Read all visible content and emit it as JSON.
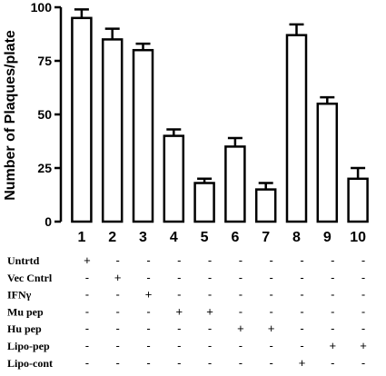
{
  "chart_data": {
    "type": "bar",
    "categories": [
      "1",
      "2",
      "3",
      "4",
      "5",
      "6",
      "7",
      "8",
      "9",
      "10"
    ],
    "values": [
      95,
      85,
      80,
      40,
      18,
      35,
      15,
      87,
      55,
      20
    ],
    "errors": [
      4,
      5,
      3,
      3,
      2,
      4,
      3,
      5,
      3,
      5
    ],
    "ylabel": "Number of Plaques/plate",
    "ylim": [
      0,
      100
    ],
    "yticks": [
      "0",
      "25",
      "50",
      "75",
      "100"
    ],
    "grid": false,
    "bar_fill": "#ffffff",
    "bar_stroke": "#000000"
  },
  "treatment_table": {
    "rows": [
      {
        "label": "Untrtd",
        "marks": [
          "+",
          "-",
          "-",
          "-",
          "-",
          "-",
          "-",
          "-",
          "-",
          "-"
        ]
      },
      {
        "label": "Vec Cntrl",
        "marks": [
          "-",
          "+",
          "-",
          "-",
          "-",
          "-",
          "-",
          "-",
          "-",
          "-"
        ]
      },
      {
        "label": "IFNγ",
        "marks": [
          "-",
          "-",
          "+",
          "-",
          "-",
          "-",
          "-",
          "-",
          "-",
          "-"
        ]
      },
      {
        "label": "Mu pep",
        "marks": [
          "-",
          "-",
          "-",
          "+",
          "+",
          "-",
          "-",
          "-",
          "-",
          "-"
        ]
      },
      {
        "label": "Hu pep",
        "marks": [
          "-",
          "-",
          "-",
          "-",
          "-",
          "+",
          "+",
          "-",
          "-",
          "-"
        ]
      },
      {
        "label": "Lipo-pep",
        "marks": [
          "-",
          "-",
          "-",
          "-",
          "-",
          "-",
          "-",
          "-",
          "+",
          "+"
        ]
      },
      {
        "label": "Lipo-cont",
        "marks": [
          "-",
          "-",
          "-",
          "-",
          "-",
          "-",
          "-",
          "+",
          "-",
          "-"
        ]
      }
    ]
  }
}
